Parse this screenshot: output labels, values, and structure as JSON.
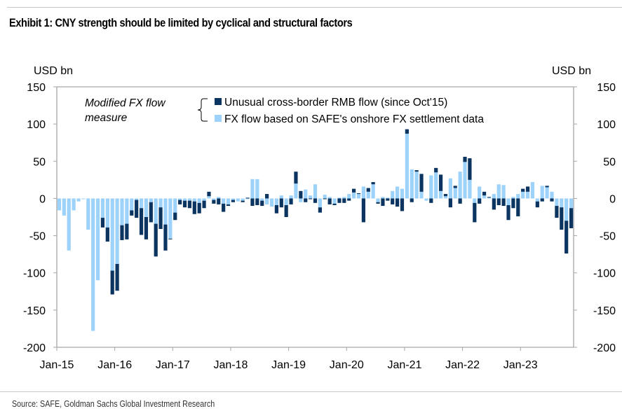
{
  "title": "Exhibit 1: CNY strength should be limited by cyclical and structural factors",
  "source": "Source: SAFE, Goldman Sachs Global Investment Research",
  "colors": {
    "dark": "#0b3560",
    "light": "#9dd3fb",
    "axis": "#a6a6a6"
  },
  "chart_data": {
    "type": "bar",
    "stacked": true,
    "title": "Exhibit 1: CNY strength should be limited by cyclical and structural factors",
    "ylabel_left": "USD bn",
    "ylabel_right": "USD bn",
    "ylim": [
      -200,
      150
    ],
    "yticks": [
      150,
      100,
      50,
      0,
      -50,
      -100,
      -150,
      -200
    ],
    "xtick_labels": [
      "Jan-15",
      "Jan-16",
      "Jan-17",
      "Jan-18",
      "Jan-19",
      "Jan-20",
      "Jan-21",
      "Jan-22",
      "Jan-23"
    ],
    "x_start": "Jan-15",
    "x_end": "Nov-23",
    "frequency": "monthly",
    "grid": false,
    "legend_placement": "top",
    "annotation": "Modified FX flow measure",
    "series": [
      {
        "name": "Unusual cross-border RMB flow (since Oct'15)",
        "color": "#0b3560",
        "values": [
          0,
          0,
          0,
          0,
          0,
          0,
          0,
          0,
          0,
          -13,
          -19,
          -32,
          -36,
          -20,
          -21,
          -7,
          -24,
          -36,
          -30,
          -27,
          -44,
          -29,
          -35,
          -1,
          -10,
          -6,
          -9,
          -10,
          -17,
          -14,
          -10,
          6,
          -5,
          -8,
          -11,
          -2,
          -3,
          0,
          -2,
          1,
          -10,
          -9,
          -7,
          6,
          0,
          -11,
          -12,
          -16,
          -8,
          16,
          10,
          -5,
          -1,
          -6,
          -7,
          -1,
          -8,
          -2,
          -6,
          -6,
          -3,
          5,
          1,
          -32,
          5,
          3,
          -2,
          -10,
          -3,
          -8,
          -11,
          -17,
          6,
          -5,
          2,
          24,
          0,
          -6,
          6,
          22,
          3,
          -12,
          3,
          -7,
          7,
          29,
          -26,
          -7,
          5,
          1,
          -15,
          -9,
          -10,
          -20,
          -13,
          -24,
          4,
          7,
          0,
          -8,
          -4,
          2,
          -4,
          -16,
          -30,
          -44,
          -27
        ]
      },
      {
        "name": "FX flow based on SAFE's onshore FX settlement data",
        "color": "#9dd3fb",
        "values": [
          -16,
          -23,
          -70,
          -16,
          -4,
          -1,
          -42,
          -178,
          -110,
          -26,
          -39,
          -97,
          -88,
          -36,
          -34,
          -16,
          -2,
          -13,
          -25,
          -5,
          -34,
          -12,
          -35,
          -54,
          -19,
          -2,
          -3,
          -3,
          -4,
          -6,
          -3,
          3,
          -2,
          2,
          -7,
          -8,
          -2,
          -4,
          -3,
          -1,
          26,
          26,
          -3,
          -8,
          -11,
          -9,
          4,
          -9,
          4,
          20,
          -5,
          12,
          4,
          19,
          -12,
          5,
          2,
          -7,
          1,
          2,
          6,
          8,
          6,
          16,
          9,
          19,
          -5,
          2,
          1,
          10,
          16,
          13,
          87,
          39,
          36,
          9,
          -3,
          31,
          35,
          10,
          3,
          27,
          14,
          36,
          49,
          25,
          -6,
          16,
          4,
          1,
          6,
          19,
          18,
          -9,
          2,
          6,
          9,
          9,
          22,
          -4,
          17,
          15,
          9,
          -10,
          -12,
          -30,
          -13
        ]
      }
    ]
  }
}
